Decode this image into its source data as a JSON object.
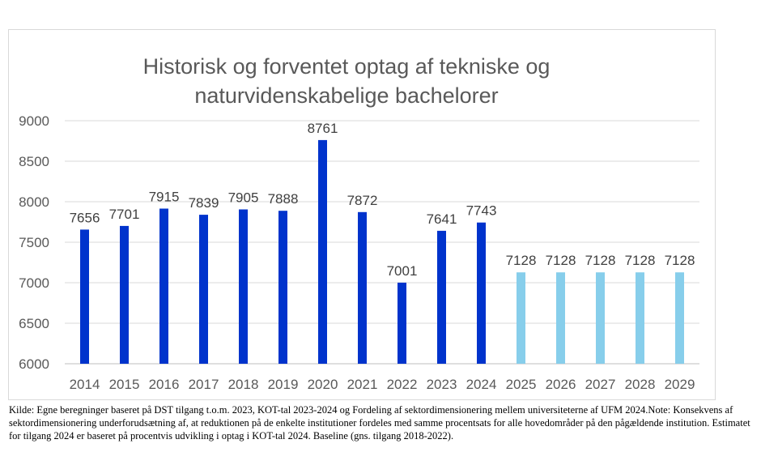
{
  "chart_data": {
    "type": "bar",
    "title": "Historisk og forventet optag af tekniske og naturvidenskabelige bachelorer",
    "title_lines": [
      "Historisk og forventet optag af tekniske og",
      "naturvidenskabelige bachelorer"
    ],
    "categories": [
      "2014",
      "2015",
      "2016",
      "2017",
      "2018",
      "2019",
      "2020",
      "2021",
      "2022",
      "2023",
      "2024",
      "2025",
      "2026",
      "2027",
      "2028",
      "2029"
    ],
    "values": [
      7656,
      7701,
      7915,
      7839,
      7905,
      7888,
      8761,
      7872,
      7001,
      7641,
      7743,
      7128,
      7128,
      7128,
      7128,
      7128
    ],
    "series_kind": [
      "historisk",
      "historisk",
      "historisk",
      "historisk",
      "historisk",
      "historisk",
      "historisk",
      "historisk",
      "historisk",
      "historisk",
      "historisk",
      "forventet",
      "forventet",
      "forventet",
      "forventet",
      "forventet"
    ],
    "colors": {
      "historisk": "#0033cc",
      "forventet": "#87ceeb"
    },
    "ylim": [
      6000,
      9000
    ],
    "yticks": [
      6000,
      6500,
      7000,
      7500,
      8000,
      8500,
      9000
    ],
    "xlabel": "",
    "ylabel": "",
    "grid": true,
    "legend": "none",
    "data_labels": true
  },
  "source_note": "Kilde: Egne beregninger baseret på DST tilgang t.o.m. 2023, KOT-tal 2023-2024 og Fordeling af sektordimensionering mellem universiteterne af UFM 2024.Note: Konsekvens af sektordimensionering underforudsætning af, at reduktionen på de enkelte institutioner fordeles med samme procentsats for alle hovedområder på den pågældende institution. Estimatet for tilgang 2024 er baseret på procentvis udvikling i optag i KOT-tal 2024. Baseline (gns. tilgang 2018-2022)."
}
